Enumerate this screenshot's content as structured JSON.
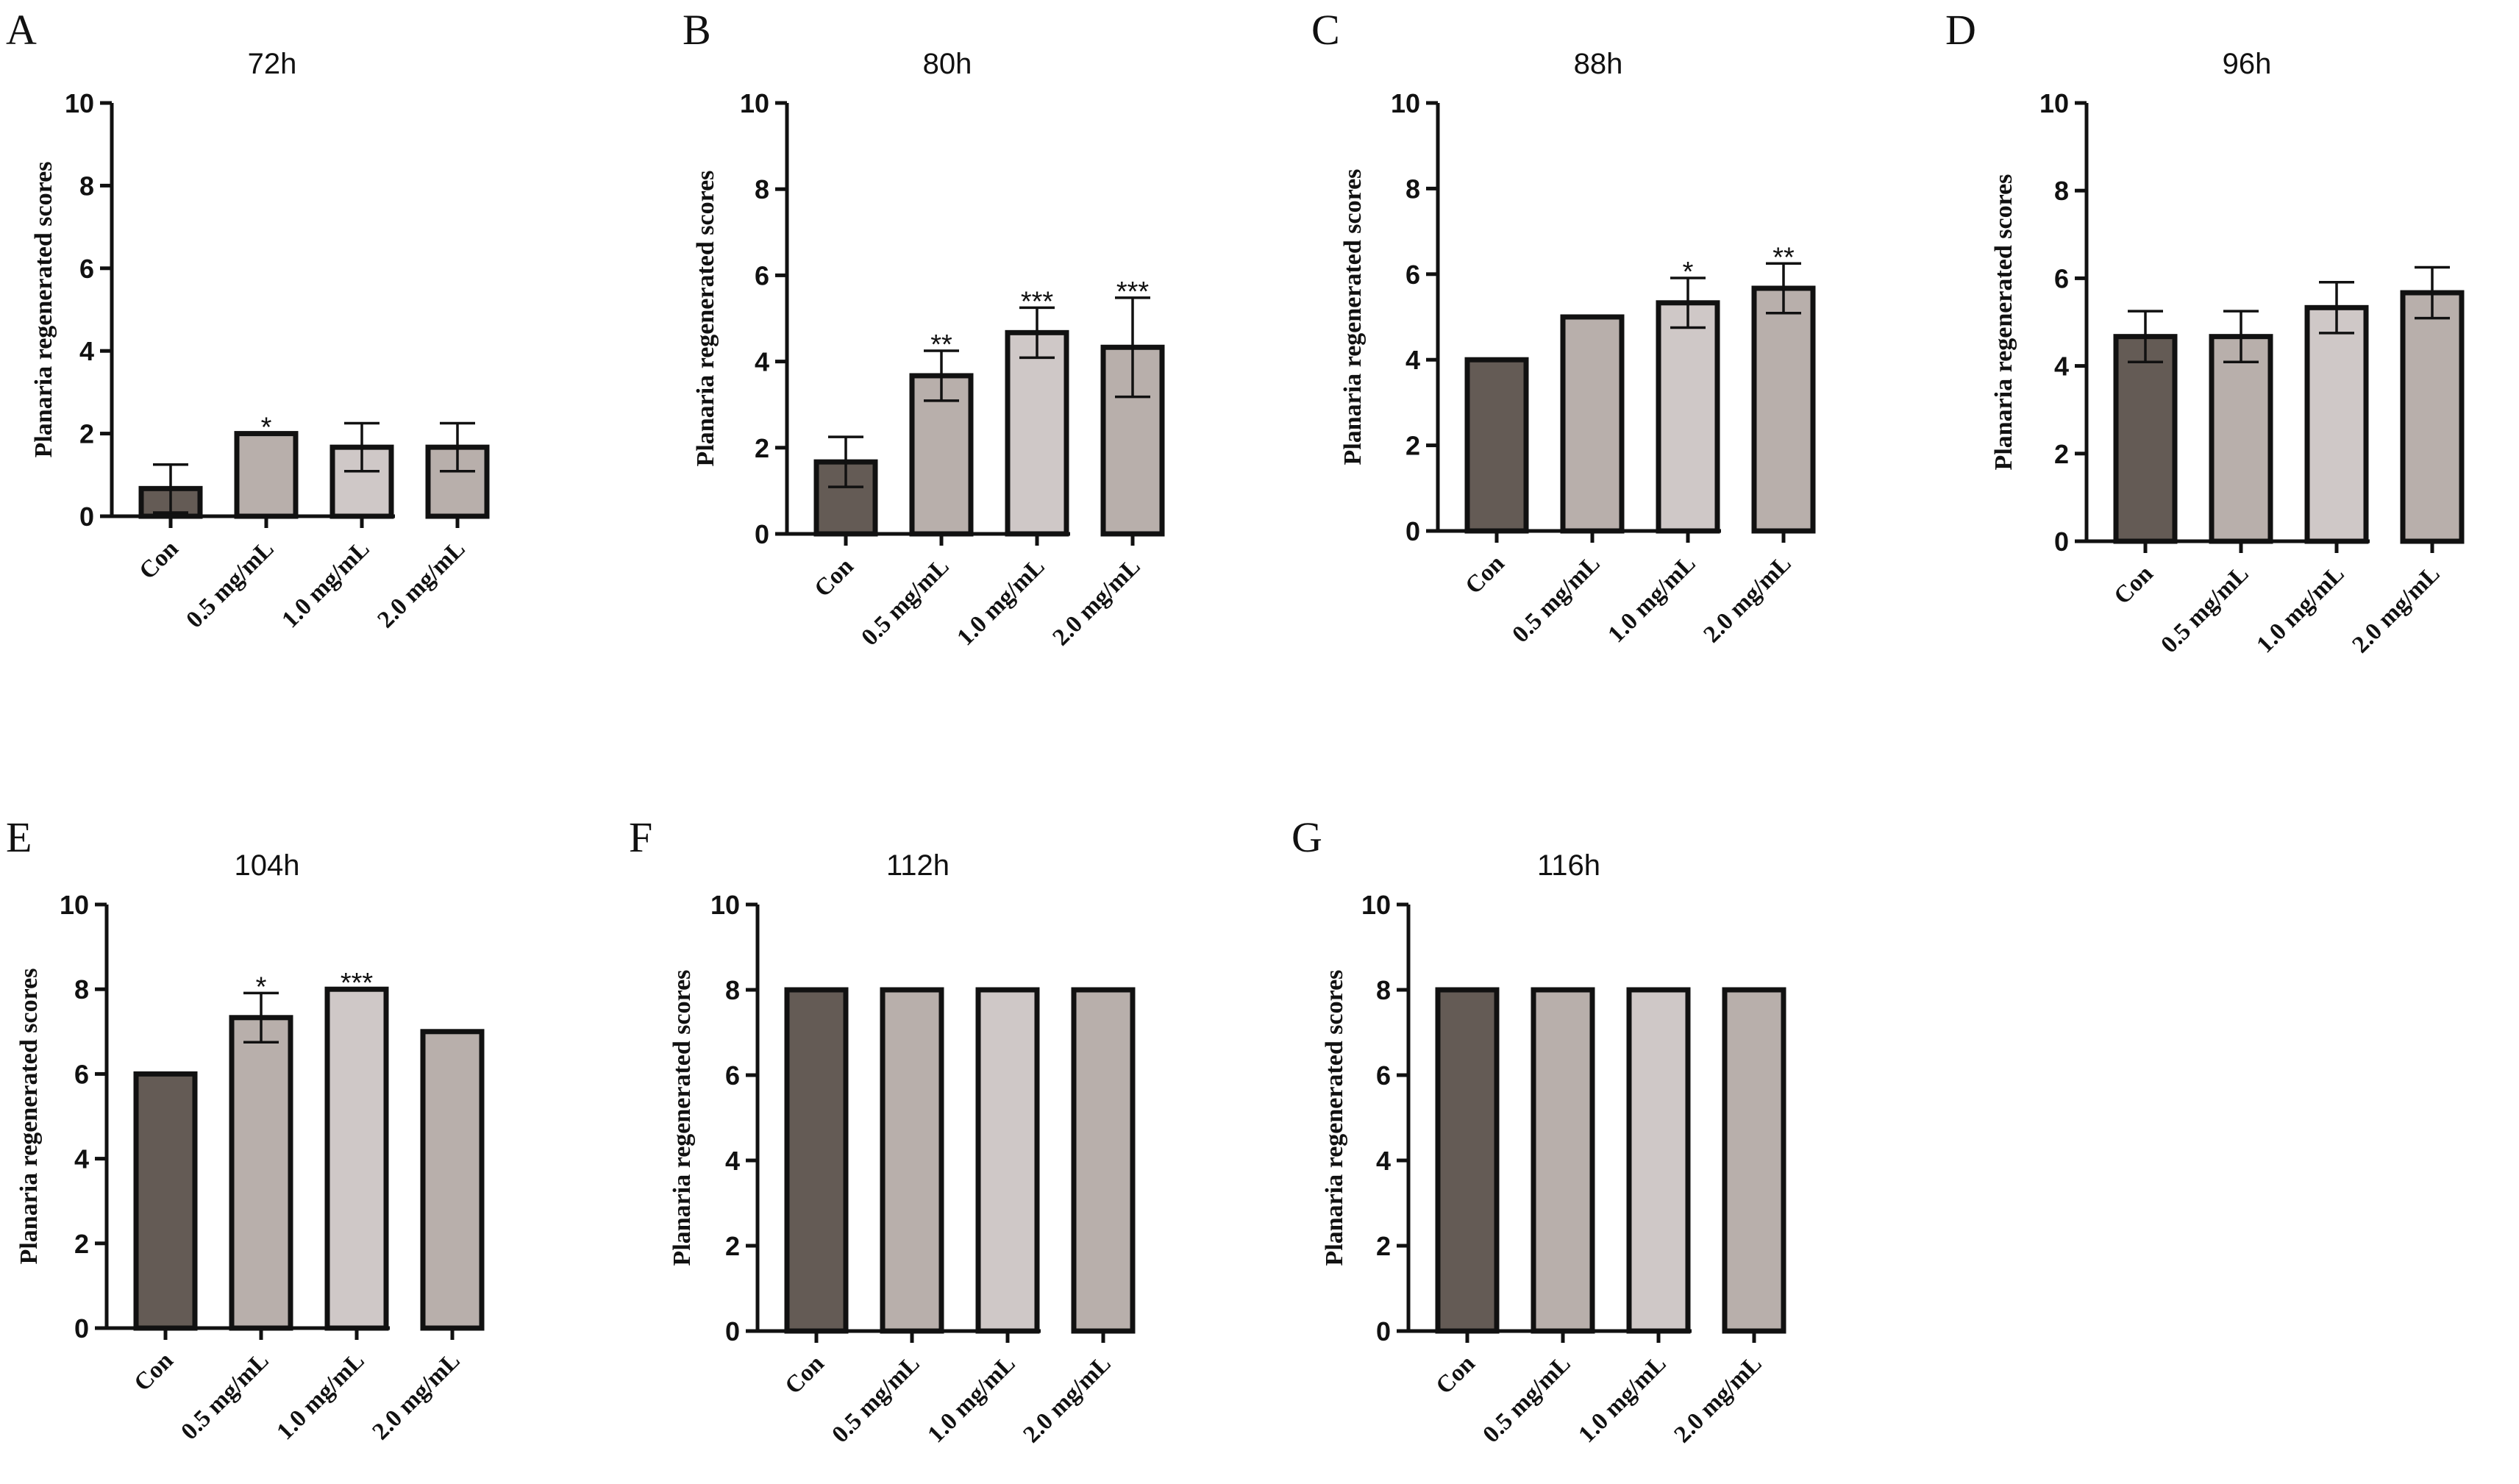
{
  "figure": {
    "y_axis_label": "Planaria regenerated scores",
    "bar_colors": [
      "#645b55",
      "#b8afab",
      "#cfc8c7",
      "#b8afab"
    ]
  },
  "chart_data": [
    {
      "type": "bar",
      "panel": "A",
      "title": "72h",
      "ylabel": "Planaria regenerated scores",
      "ylim": [
        0,
        10
      ],
      "yticks": [
        "0",
        "2",
        "4",
        "6",
        "8",
        "10"
      ],
      "categories": [
        "Con",
        "0.5 mg/mL",
        "1.0 mg/mL",
        "2.0 mg/mL"
      ],
      "values": [
        0.67,
        2.0,
        1.67,
        1.67
      ],
      "errors": [
        0.58,
        0,
        0.58,
        0.58
      ],
      "significance": [
        "",
        "*",
        "",
        ""
      ]
    },
    {
      "type": "bar",
      "panel": "B",
      "title": "80h",
      "ylabel": "Planaria regenerated scores",
      "ylim": [
        0,
        10
      ],
      "yticks": [
        "0",
        "2",
        "4",
        "6",
        "8",
        "10"
      ],
      "categories": [
        "Con",
        "0.5 mg/mL",
        "1.0 mg/mL",
        "2.0 mg/mL"
      ],
      "values": [
        1.67,
        3.67,
        4.67,
        4.33
      ],
      "errors": [
        0.58,
        0.58,
        0.58,
        1.15
      ],
      "significance": [
        "",
        "**",
        "***",
        "***"
      ]
    },
    {
      "type": "bar",
      "panel": "C",
      "title": "88h",
      "ylabel": "Planaria regenerated scores",
      "ylim": [
        0,
        10
      ],
      "yticks": [
        "0",
        "2",
        "4",
        "6",
        "8",
        "10"
      ],
      "categories": [
        "Con",
        "0.5 mg/mL",
        "1.0 mg/mL",
        "2.0 mg/mL"
      ],
      "values": [
        4.0,
        5.0,
        5.33,
        5.67
      ],
      "errors": [
        0,
        0,
        0.58,
        0.58
      ],
      "significance": [
        "",
        "",
        "*",
        "**"
      ]
    },
    {
      "type": "bar",
      "panel": "D",
      "title": "96h",
      "ylabel": "Planaria regenerated scores",
      "ylim": [
        0,
        10
      ],
      "yticks": [
        "0",
        "2",
        "4",
        "6",
        "8",
        "10"
      ],
      "categories": [
        "Con",
        "0.5 mg/mL",
        "1.0 mg/mL",
        "2.0 mg/mL"
      ],
      "values": [
        4.67,
        4.67,
        5.33,
        5.67
      ],
      "errors": [
        0.58,
        0.58,
        0.58,
        0.58
      ],
      "significance": [
        "",
        "",
        "",
        ""
      ]
    },
    {
      "type": "bar",
      "panel": "E",
      "title": "104h",
      "ylabel": "Planaria regenerated scores",
      "ylim": [
        0,
        10
      ],
      "yticks": [
        "0",
        "2",
        "4",
        "6",
        "8",
        "10"
      ],
      "categories": [
        "Con",
        "0.5 mg/mL",
        "1.0 mg/mL",
        "2.0 mg/mL"
      ],
      "values": [
        6.0,
        7.33,
        8.0,
        7.0
      ],
      "errors": [
        0,
        0.58,
        0,
        0
      ],
      "significance": [
        "",
        "*",
        "***",
        ""
      ]
    },
    {
      "type": "bar",
      "panel": "F",
      "title": "112h",
      "ylabel": "Planaria regenerated scores",
      "ylim": [
        0,
        10
      ],
      "yticks": [
        "0",
        "2",
        "4",
        "6",
        "8",
        "10"
      ],
      "categories": [
        "Con",
        "0.5 mg/mL",
        "1.0 mg/mL",
        "2.0 mg/mL"
      ],
      "values": [
        8.0,
        8.0,
        8.0,
        8.0
      ],
      "errors": [
        0,
        0,
        0,
        0
      ],
      "significance": [
        "",
        "",
        "",
        ""
      ]
    },
    {
      "type": "bar",
      "panel": "G",
      "title": "116h",
      "ylabel": "Planaria regenerated scores",
      "ylim": [
        0,
        10
      ],
      "yticks": [
        "0",
        "2",
        "4",
        "6",
        "8",
        "10"
      ],
      "categories": [
        "Con",
        "0.5 mg/mL",
        "1.0 mg/mL",
        "2.0 mg/mL"
      ],
      "values": [
        8.0,
        8.0,
        8.0,
        8.0
      ],
      "errors": [
        0,
        0,
        0,
        0
      ],
      "significance": [
        "",
        "",
        "",
        ""
      ]
    }
  ]
}
